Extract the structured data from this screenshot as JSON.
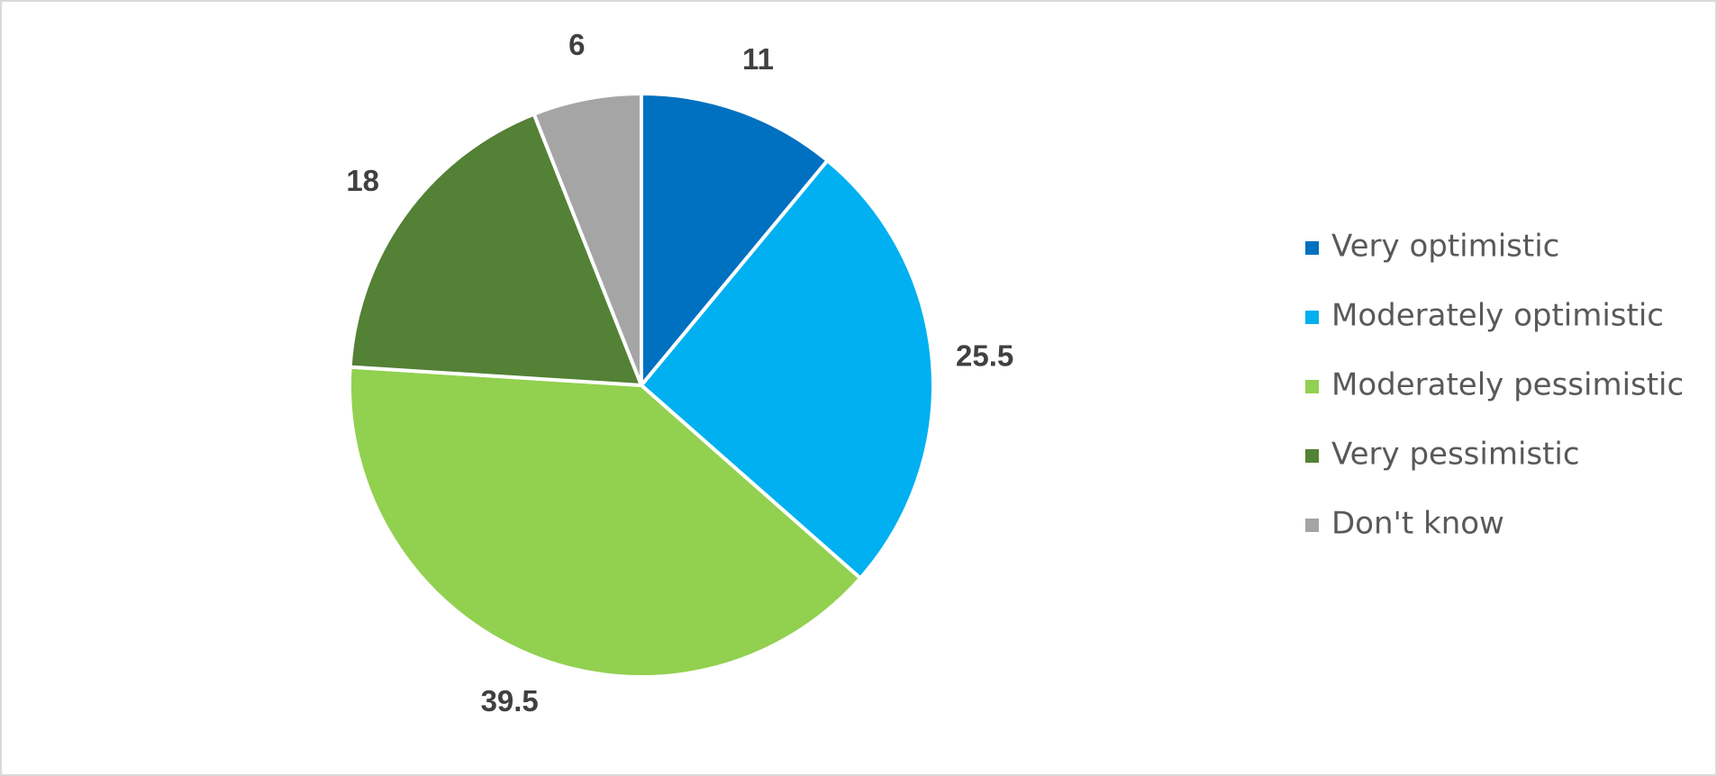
{
  "chart_data": {
    "type": "pie",
    "categories": [
      "Very optimistic",
      "Moderately optimistic",
      "Moderately pessimistic",
      "Very pessimistic",
      "Don't know"
    ],
    "values": [
      11,
      25.5,
      39.5,
      18,
      6
    ],
    "colors": [
      "#0070c0",
      "#00b0f0",
      "#92d050",
      "#538135",
      "#a5a5a5"
    ],
    "legend": "right"
  }
}
